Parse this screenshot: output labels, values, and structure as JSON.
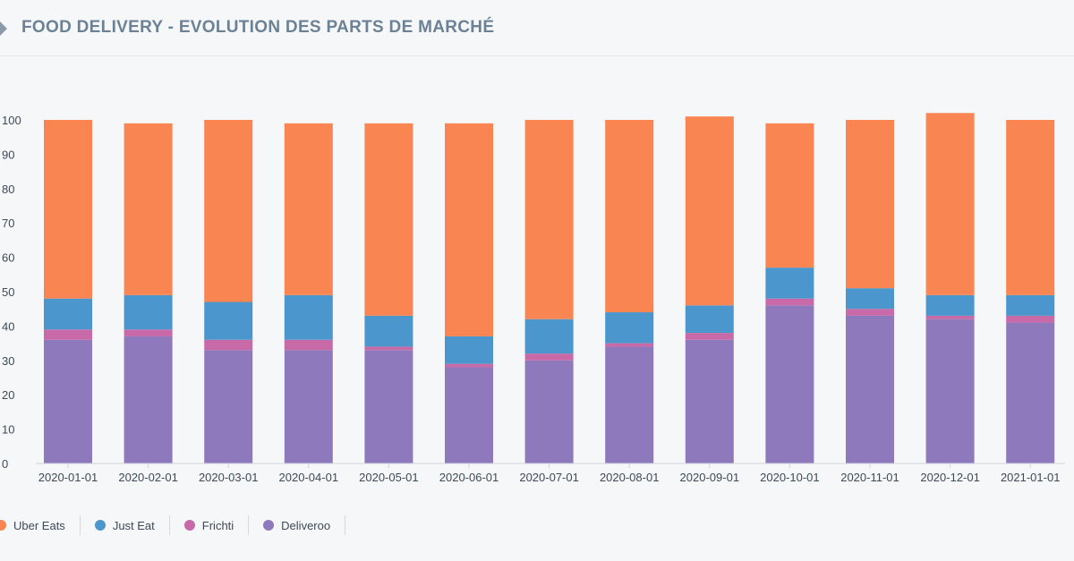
{
  "header": {
    "title": "FOOD DELIVERY - EVOLUTION DES PARTS DE MARCHÉ"
  },
  "chart_data": {
    "type": "bar",
    "stacked": true,
    "title": "FOOD DELIVERY - EVOLUTION DES PARTS DE MARCHÉ",
    "xlabel": "",
    "ylabel": "",
    "ylim": [
      0,
      100
    ],
    "yticks": [
      0,
      10,
      20,
      30,
      40,
      50,
      60,
      70,
      80,
      90,
      100
    ],
    "grid": false,
    "legend_position": "bottom-left",
    "categories": [
      "2020-01-01",
      "2020-02-01",
      "2020-03-01",
      "2020-04-01",
      "2020-05-01",
      "2020-06-01",
      "2020-07-01",
      "2020-08-01",
      "2020-09-01",
      "2020-10-01",
      "2020-11-01",
      "2020-12-01",
      "2021-01-01"
    ],
    "series": [
      {
        "name": "Deliveroo",
        "color": "#8e79bd",
        "values": [
          36,
          37,
          33,
          33,
          33,
          28,
          30,
          34,
          36,
          46,
          43,
          42,
          41
        ]
      },
      {
        "name": "Frichti",
        "color": "#c869a8",
        "values": [
          3,
          2,
          3,
          3,
          1,
          1,
          2,
          1,
          2,
          2,
          2,
          1,
          2
        ]
      },
      {
        "name": "Just Eat",
        "color": "#4b96cc",
        "values": [
          9,
          10,
          11,
          13,
          9,
          8,
          10,
          9,
          8,
          9,
          6,
          6,
          6
        ]
      },
      {
        "name": "Uber Eats",
        "color": "#f88552",
        "values": [
          52,
          50,
          53,
          50,
          56,
          62,
          58,
          56,
          55,
          42,
          49,
          53,
          51
        ]
      }
    ]
  },
  "legend": {
    "items": [
      {
        "label": "Uber Eats",
        "color": "#f88552"
      },
      {
        "label": "Just Eat",
        "color": "#4b96cc"
      },
      {
        "label": "Frichti",
        "color": "#c869a8"
      },
      {
        "label": "Deliveroo",
        "color": "#8e79bd"
      }
    ]
  }
}
